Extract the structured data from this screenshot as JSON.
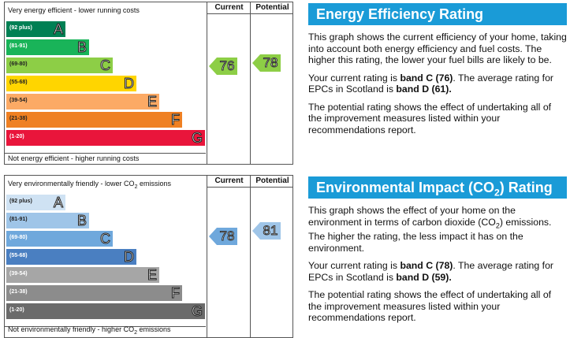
{
  "energy": {
    "chart": {
      "col_current": "Current",
      "col_potential": "Potential",
      "top_label": "Very energy efficient - lower running costs",
      "bottom_label": "Not energy efficient - higher running costs",
      "bands": [
        {
          "range": "(92 plus)",
          "letter": "A",
          "color": "#008054"
        },
        {
          "range": "(81-91)",
          "letter": "B",
          "color": "#19b459"
        },
        {
          "range": "(69-80)",
          "letter": "C",
          "color": "#8dce46"
        },
        {
          "range": "(55-68)",
          "letter": "D",
          "color": "#ffd500"
        },
        {
          "range": "(39-54)",
          "letter": "E",
          "color": "#fcaa65"
        },
        {
          "range": "(21-38)",
          "letter": "F",
          "color": "#ef8023"
        },
        {
          "range": "(1-20)",
          "letter": "G",
          "color": "#e9153b"
        }
      ],
      "current": "76",
      "potential": "78",
      "current_color": "#8dce46",
      "potential_color": "#8dce46"
    },
    "panel": {
      "title": "Energy Efficiency Rating",
      "p1": "This graph shows the current efficiency of your home, taking into account both energy efficiency and fuel costs. The higher this rating, the lower your fuel bills are likely to be.",
      "p2_prefix": "Your current rating is ",
      "p2_bold1": "band C (76)",
      "p2_mid": ". The average rating for EPCs in Scotland is ",
      "p2_bold2": "band D (61).",
      "p3": "The potential rating shows the effect of undertaking all of the improvement measures listed within your recommendations report."
    }
  },
  "environment": {
    "chart": {
      "col_current": "Current",
      "col_potential": "Potential",
      "top_label_pre": "Very environmentally friendly - lower CO",
      "top_label_sub": "2",
      "top_label_post": " emissions",
      "bottom_label_pre": "Not environmentally friendly - higher CO",
      "bottom_label_sub": "2",
      "bottom_label_post": " emissions",
      "bands": [
        {
          "range": "(92 plus)",
          "letter": "A",
          "color": "#cfe2f3"
        },
        {
          "range": "(81-91)",
          "letter": "B",
          "color": "#9fc5e8"
        },
        {
          "range": "(69-80)",
          "letter": "C",
          "color": "#6fa8dc"
        },
        {
          "range": "(55-68)",
          "letter": "D",
          "color": "#4a7fc1"
        },
        {
          "range": "(39-54)",
          "letter": "E",
          "color": "#a6a6a6"
        },
        {
          "range": "(21-38)",
          "letter": "F",
          "color": "#8c8c8c"
        },
        {
          "range": "(1-20)",
          "letter": "G",
          "color": "#6b6b6b"
        }
      ],
      "current": "78",
      "potential": "81",
      "current_color": "#6fa8dc",
      "potential_color": "#9fc5e8"
    },
    "panel": {
      "title_pre": "Environmental Impact (CO",
      "title_sub": "2",
      "title_post": ") Rating",
      "p1_pre": "This graph shows the effect of your home on the environment in terms of carbon dioxide (CO",
      "p1_sub": "2",
      "p1_post": ") emissions. The higher the rating, the less impact it has on the environment.",
      "p2_prefix": "Your current rating is ",
      "p2_bold1": "band C (78)",
      "p2_mid": ". The average rating for EPCs in Scotland is ",
      "p2_bold2": "band D (59).",
      "p3": "The potential rating shows the effect of undertaking all of the improvement measures listed within your recommendations report."
    }
  }
}
